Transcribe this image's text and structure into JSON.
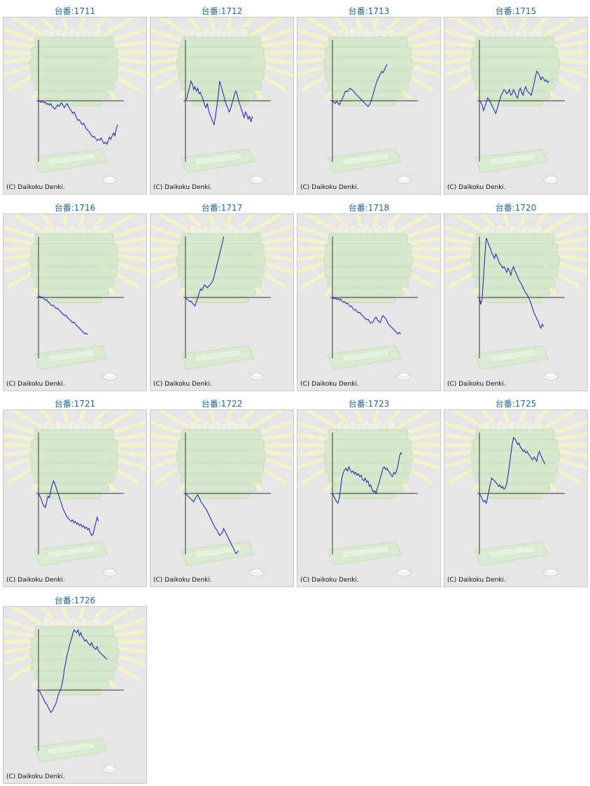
{
  "colors": {
    "label": "#1f6a8a",
    "line": "#1a1ab8",
    "axis": "#333333",
    "panel": "#e6e6e6"
  },
  "copyright": "(C) Daikoku Denki.",
  "chart_data": [
    {
      "type": "line",
      "title": "台番:1711",
      "values": [
        0,
        -1,
        -2,
        0,
        -3,
        -2,
        -5,
        -4,
        -6,
        -4,
        -8,
        -10,
        -12,
        -9,
        -6,
        -8,
        -5,
        -3,
        -7,
        -10,
        -6,
        -4,
        -8,
        -12,
        -14,
        -18,
        -16,
        -20,
        -25,
        -28,
        -27,
        -31,
        -34,
        -32,
        -36,
        -40,
        -42,
        -44,
        -47,
        -50,
        -52,
        -51,
        -54,
        -57,
        -55,
        -56,
        -53,
        -58,
        -61,
        -59,
        -62,
        -58,
        -52,
        -55,
        -50,
        -46,
        -50,
        -40,
        -34
      ]
    },
    {
      "type": "line",
      "title": "台番:1712",
      "values": [
        0,
        4,
        12,
        20,
        28,
        24,
        16,
        20,
        14,
        18,
        10,
        12,
        6,
        2,
        -6,
        -10,
        -4,
        -14,
        -20,
        -24,
        -30,
        -34,
        -22,
        -8,
        8,
        28,
        22,
        14,
        8,
        0,
        -6,
        -10,
        -16,
        -12,
        -4,
        2,
        10,
        14,
        8,
        0,
        -6,
        -12,
        -18,
        -24,
        -16,
        -20,
        -26,
        -22,
        -30,
        -22
      ]
    },
    {
      "type": "line",
      "title": "台番:1713",
      "values": [
        0,
        -2,
        -4,
        -1,
        -3,
        -6,
        -2,
        2,
        6,
        12,
        14,
        13,
        16,
        18,
        16,
        15,
        12,
        10,
        8,
        6,
        4,
        2,
        0,
        -2,
        -4,
        -6,
        -8,
        -6,
        -2,
        4,
        10,
        18,
        24,
        30,
        34,
        38,
        42,
        40,
        44,
        48,
        52
      ]
    },
    {
      "type": "line",
      "title": "台番:1715",
      "values": [
        0,
        -2,
        -6,
        -14,
        -8,
        -2,
        4,
        2,
        -2,
        -6,
        -10,
        -14,
        -18,
        -12,
        -4,
        2,
        8,
        12,
        16,
        14,
        10,
        12,
        16,
        8,
        10,
        16,
        12,
        6,
        4,
        14,
        18,
        12,
        8,
        16,
        20,
        14,
        12,
        10,
        8,
        16,
        24,
        34,
        42,
        40,
        36,
        30,
        34,
        32,
        28,
        30,
        26,
        28
      ]
    },
    {
      "type": "line",
      "title": "台番:1716",
      "values": [
        0,
        2,
        -1,
        1,
        -2,
        -4,
        -3,
        -6,
        -8,
        -10,
        -12,
        -11,
        -14,
        -16,
        -15,
        -18,
        -20,
        -22,
        -24,
        -26,
        -25,
        -28,
        -30,
        -32,
        -34,
        -36,
        -35,
        -38,
        -40,
        -42,
        -44,
        -46,
        -48,
        -50,
        -52,
        -51,
        -53
      ]
    },
    {
      "type": "line",
      "title": "台番:1717",
      "values": [
        0,
        -2,
        -4,
        -6,
        -5,
        -8,
        -10,
        -12,
        -6,
        0,
        6,
        12,
        10,
        14,
        18,
        16,
        14,
        16,
        18,
        20,
        24,
        30,
        38,
        46,
        54,
        62,
        70,
        78,
        88
      ]
    },
    {
      "type": "line",
      "title": "台番:1718",
      "values": [
        0,
        -2,
        0,
        -3,
        -1,
        -4,
        -2,
        -5,
        -7,
        -6,
        -9,
        -8,
        -11,
        -13,
        -12,
        -16,
        -18,
        -17,
        -20,
        -22,
        -21,
        -24,
        -26,
        -28,
        -30,
        -32,
        -31,
        -34,
        -37,
        -36,
        -34,
        -30,
        -28,
        -32,
        -34,
        -36,
        -30,
        -26,
        -28,
        -30,
        -34,
        -38,
        -40,
        -42,
        -44,
        -46,
        -48,
        -50,
        -52,
        -50,
        -52
      ]
    },
    {
      "type": "line",
      "title": "台番:1720",
      "values": [
        0,
        -10,
        -2,
        30,
        60,
        85,
        80,
        74,
        70,
        64,
        60,
        56,
        62,
        58,
        52,
        48,
        46,
        42,
        44,
        40,
        36,
        42,
        38,
        32,
        40,
        44,
        38,
        34,
        30,
        24,
        22,
        18,
        14,
        10,
        6,
        4,
        0,
        -4,
        -10,
        -16,
        -22,
        -26,
        -30,
        -34,
        -40,
        -44,
        -38,
        -42
      ]
    },
    {
      "type": "line",
      "title": "台番:1721",
      "values": [
        0,
        -4,
        -8,
        -14,
        -18,
        -20,
        -12,
        -4,
        -6,
        4,
        12,
        18,
        14,
        8,
        2,
        -4,
        -10,
        -16,
        -22,
        -26,
        -30,
        -34,
        -36,
        -38,
        -40,
        -38,
        -42,
        -40,
        -44,
        -42,
        -46,
        -44,
        -48,
        -46,
        -50,
        -48,
        -52,
        -50,
        -56,
        -60,
        -58,
        -50,
        -42,
        -34,
        -40
      ]
    },
    {
      "type": "line",
      "title": "台番:1722",
      "values": [
        0,
        -2,
        -4,
        -6,
        -8,
        -10,
        -12,
        -8,
        -4,
        -2,
        -6,
        -10,
        -14,
        -16,
        -20,
        -22,
        -26,
        -30,
        -34,
        -38,
        -42,
        -46,
        -50,
        -52,
        -56,
        -60,
        -58,
        -56,
        -50,
        -54,
        -58,
        -62,
        -66,
        -70,
        -74,
        -78,
        -82,
        -86,
        -84,
        -82
      ]
    },
    {
      "type": "line",
      "title": "台番:1723",
      "values": [
        0,
        -4,
        -8,
        -12,
        -14,
        -6,
        8,
        22,
        30,
        34,
        36,
        32,
        38,
        34,
        30,
        32,
        28,
        30,
        26,
        28,
        24,
        26,
        20,
        18,
        22,
        16,
        18,
        10,
        12,
        6,
        2,
        4,
        0,
        8,
        14,
        22,
        28,
        36,
        38,
        34,
        36,
        32,
        30,
        26,
        24,
        30,
        28,
        32,
        40,
        52,
        58,
        56
      ]
    },
    {
      "type": "line",
      "title": "台番:1725",
      "values": [
        0,
        -4,
        -8,
        -12,
        -10,
        -14,
        -6,
        4,
        14,
        22,
        20,
        18,
        16,
        14,
        10,
        12,
        8,
        10,
        6,
        8,
        14,
        26,
        40,
        56,
        70,
        80,
        78,
        74,
        70,
        72,
        66,
        64,
        60,
        62,
        58,
        60,
        56,
        54,
        50,
        48,
        52,
        50,
        46,
        56,
        60,
        54,
        50,
        46,
        42
      ]
    },
    {
      "type": "line",
      "title": "台番:1726",
      "values": [
        0,
        -2,
        -6,
        -10,
        -14,
        -18,
        -20,
        -24,
        -28,
        -32,
        -30,
        -26,
        -22,
        -18,
        -10,
        -4,
        0,
        6,
        16,
        30,
        40,
        50,
        58,
        66,
        72,
        80,
        86,
        84,
        82,
        86,
        78,
        82,
        76,
        74,
        70,
        72,
        68,
        66,
        64,
        68,
        62,
        60,
        58,
        62,
        56,
        54,
        52,
        50,
        48,
        46,
        44
      ]
    }
  ]
}
